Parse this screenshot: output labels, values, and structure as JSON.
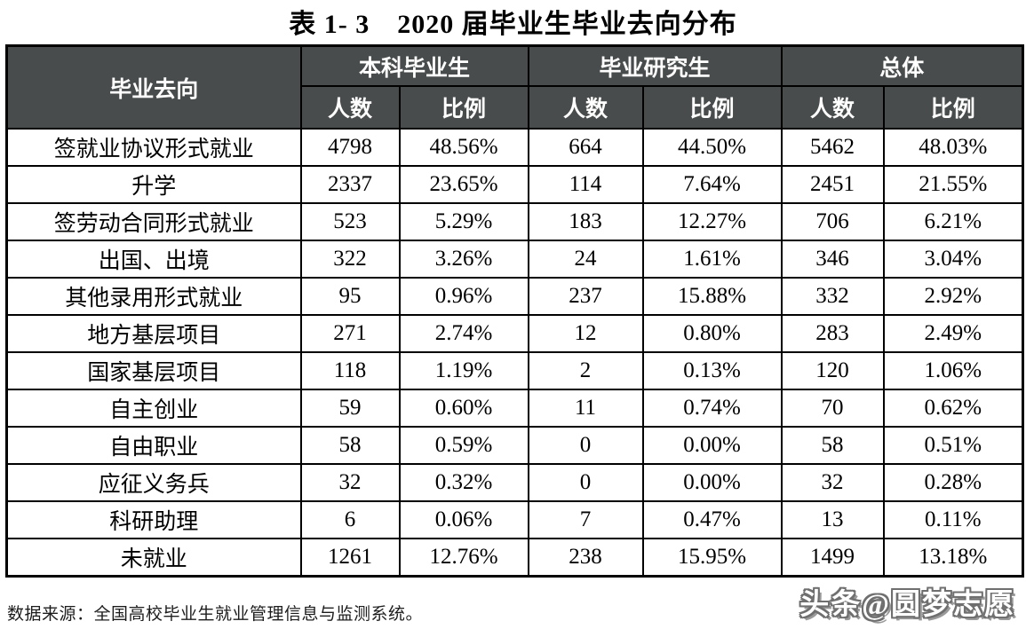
{
  "page": {
    "title": "表 1- 3　2020 届毕业生毕业去向分布"
  },
  "table": {
    "corner_header": "毕业去向",
    "group_headers": [
      "本科毕业生",
      "毕业研究生",
      "总体"
    ],
    "sub_headers": [
      "人数",
      "比例",
      "人数",
      "比例",
      "人数",
      "比例"
    ],
    "rows": [
      [
        "签就业协议形式就业",
        "4798",
        "48.56%",
        "664",
        "44.50%",
        "5462",
        "48.03%"
      ],
      [
        "升学",
        "2337",
        "23.65%",
        "114",
        "7.64%",
        "2451",
        "21.55%"
      ],
      [
        "签劳动合同形式就业",
        "523",
        "5.29%",
        "183",
        "12.27%",
        "706",
        "6.21%"
      ],
      [
        "出国、出境",
        "322",
        "3.26%",
        "24",
        "1.61%",
        "346",
        "3.04%"
      ],
      [
        "其他录用形式就业",
        "95",
        "0.96%",
        "237",
        "15.88%",
        "332",
        "2.92%"
      ],
      [
        "地方基层项目",
        "271",
        "2.74%",
        "12",
        "0.80%",
        "283",
        "2.49%"
      ],
      [
        "国家基层项目",
        "118",
        "1.19%",
        "2",
        "0.13%",
        "120",
        "1.06%"
      ],
      [
        "自主创业",
        "59",
        "0.60%",
        "11",
        "0.74%",
        "70",
        "0.62%"
      ],
      [
        "自由职业",
        "58",
        "0.59%",
        "0",
        "0.00%",
        "58",
        "0.51%"
      ],
      [
        "应征义务兵",
        "32",
        "0.32%",
        "0",
        "0.00%",
        "32",
        "0.28%"
      ],
      [
        "科研助理",
        "6",
        "0.06%",
        "7",
        "0.47%",
        "13",
        "0.11%"
      ],
      [
        "未就业",
        "1261",
        "12.76%",
        "238",
        "15.95%",
        "1499",
        "13.18%"
      ]
    ]
  },
  "footer": {
    "source_note": "数据来源：全国高校毕业生就业管理信息与监测系统。"
  },
  "watermark": {
    "text": "头条@圆梦志愿"
  },
  "colors": {
    "header_bg": "#484c4c",
    "header_text": "#ffffff",
    "border": "#000000",
    "body_text": "#000000",
    "watermark_fill": "#ffffff",
    "watermark_outline": "#6f6f6f"
  },
  "chart_data": {
    "type": "table",
    "title": "表 1- 3　2020 届毕业生毕业去向分布",
    "columns": [
      "毕业去向",
      "本科毕业生-人数",
      "本科毕业生-比例",
      "毕业研究生-人数",
      "毕业研究生-比例",
      "总体-人数",
      "总体-比例"
    ],
    "rows": [
      [
        "签就业协议形式就业",
        4798,
        "48.56%",
        664,
        "44.50%",
        5462,
        "48.03%"
      ],
      [
        "升学",
        2337,
        "23.65%",
        114,
        "7.64%",
        2451,
        "21.55%"
      ],
      [
        "签劳动合同形式就业",
        523,
        "5.29%",
        183,
        "12.27%",
        706,
        "6.21%"
      ],
      [
        "出国、出境",
        322,
        "3.26%",
        24,
        "1.61%",
        346,
        "3.04%"
      ],
      [
        "其他录用形式就业",
        95,
        "0.96%",
        237,
        "15.88%",
        332,
        "2.92%"
      ],
      [
        "地方基层项目",
        271,
        "2.74%",
        12,
        "0.80%",
        283,
        "2.49%"
      ],
      [
        "国家基层项目",
        118,
        "1.19%",
        2,
        "0.13%",
        120,
        "1.06%"
      ],
      [
        "自主创业",
        59,
        "0.60%",
        11,
        "0.74%",
        70,
        "0.62%"
      ],
      [
        "自由职业",
        58,
        "0.59%",
        0,
        "0.00%",
        58,
        "0.51%"
      ],
      [
        "应征义务兵",
        32,
        "0.32%",
        0,
        "0.00%",
        32,
        "0.28%"
      ],
      [
        "科研助理",
        6,
        "0.06%",
        7,
        "0.47%",
        13,
        "0.11%"
      ],
      [
        "未就业",
        1261,
        "12.76%",
        238,
        "15.95%",
        1499,
        "13.18%"
      ]
    ]
  }
}
